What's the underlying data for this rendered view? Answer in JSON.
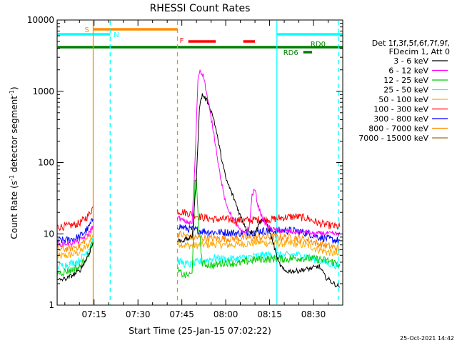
{
  "chart_data": {
    "type": "line",
    "title": "RHESSI Count Rates",
    "xlabel": "Start Time (25-Jan-15 07:02:22)",
    "ylabel_main": "Count Rate (s",
    "ylabel_sup1": "-1",
    "ylabel_mid": " detector segment",
    "ylabel_sup2": "-1",
    "ylabel_end": ")",
    "x_start_min": 422.37,
    "x_end_min": 520.0,
    "ylim": [
      1,
      10000
    ],
    "y_scale": "log",
    "x_ticks": [
      {
        "min": 435,
        "label": "07:15"
      },
      {
        "min": 450,
        "label": "07:30"
      },
      {
        "min": 465,
        "label": "07:45"
      },
      {
        "min": 480,
        "label": "08:00"
      },
      {
        "min": 495,
        "label": "08:15"
      },
      {
        "min": 510,
        "label": "08:30"
      }
    ],
    "y_ticks": [
      {
        "value": 1,
        "label": "1"
      },
      {
        "value": 10,
        "label": "10"
      },
      {
        "value": 100,
        "label": "100"
      },
      {
        "value": 1000,
        "label": "1000"
      },
      {
        "value": 10000,
        "label": "10000"
      }
    ],
    "legend_header": [
      "Det 1f,3f,5f,6f,7f,9f,",
      "FDecim 1, Att 0"
    ],
    "legend_placement": "right",
    "series": [
      {
        "name": "3 - 6 keV",
        "color": "#000000",
        "segments": [
          [
            [
              422.4,
              2.2
            ],
            [
              426,
              2.4
            ],
            [
              430,
              3
            ],
            [
              433,
              5
            ],
            [
              434.7,
              7.5
            ]
          ],
          [
            [
              463.5,
              8
            ],
            [
              466,
              8.2
            ],
            [
              468.5,
              9
            ],
            [
              470,
              60
            ],
            [
              471,
              600
            ],
            [
              472,
              900
            ],
            [
              474,
              700
            ],
            [
              476,
              400
            ],
            [
              478,
              150
            ],
            [
              480,
              60
            ],
            [
              483,
              30
            ],
            [
              485,
              18
            ],
            [
              487,
              12
            ],
            [
              490,
              10
            ],
            [
              492,
              16
            ],
            [
              494,
              14
            ],
            [
              496,
              8
            ],
            [
              498,
              4
            ],
            [
              500,
              3
            ],
            [
              504,
              3
            ],
            [
              508,
              3.2
            ],
            [
              512,
              3.5
            ],
            [
              514,
              2.5
            ],
            [
              517,
              2
            ],
            [
              519,
              1.8
            ]
          ]
        ]
      },
      {
        "name": "6 - 12 keV",
        "color": "#ff00ff",
        "segments": [
          [
            [
              422.4,
              7
            ],
            [
              426,
              7.3
            ],
            [
              430,
              8
            ],
            [
              433,
              10
            ],
            [
              434.7,
              13
            ]
          ],
          [
            [
              463.5,
              17
            ],
            [
              466,
              15
            ],
            [
              468.5,
              14
            ],
            [
              469.5,
              100
            ],
            [
              470.5,
              1500
            ],
            [
              471.2,
              2000
            ],
            [
              472.5,
              1600
            ],
            [
              474,
              700
            ],
            [
              476,
              250
            ],
            [
              478,
              70
            ],
            [
              480,
              26
            ],
            [
              483,
              15
            ],
            [
              485,
              11
            ],
            [
              486,
              10
            ],
            [
              488,
              12
            ],
            [
              489,
              35
            ],
            [
              490,
              42
            ],
            [
              491,
              25
            ],
            [
              493,
              15
            ],
            [
              495,
              12
            ],
            [
              498,
              11
            ],
            [
              501,
              11
            ],
            [
              504,
              10.5
            ],
            [
              506,
              11
            ],
            [
              510,
              10
            ],
            [
              513,
              10.2
            ],
            [
              516,
              10
            ],
            [
              519,
              10
            ]
          ]
        ]
      },
      {
        "name": "12 - 25 keV",
        "color": "#00cc00",
        "segments": [
          [
            [
              422.4,
              2.8
            ],
            [
              426,
              3
            ],
            [
              430,
              3.4
            ],
            [
              433,
              5
            ],
            [
              434.7,
              8
            ]
          ],
          [
            [
              463.5,
              3
            ],
            [
              466,
              2.6
            ],
            [
              468.5,
              2.7
            ],
            [
              469.5,
              50
            ],
            [
              470,
              55
            ],
            [
              470.7,
              14
            ],
            [
              472,
              3.8
            ],
            [
              476,
              3.6
            ],
            [
              480,
              4
            ],
            [
              484,
              3.8
            ],
            [
              488,
              4.2
            ],
            [
              491,
              4.4
            ],
            [
              494,
              4.4
            ],
            [
              498,
              4.5
            ],
            [
              501,
              4.4
            ],
            [
              504,
              4.6
            ],
            [
              508,
              4.5
            ],
            [
              512,
              4.4
            ],
            [
              516,
              4.1
            ],
            [
              519,
              3.7
            ]
          ]
        ]
      },
      {
        "name": "25 - 50 keV",
        "color": "#00ffff",
        "segments": [
          [
            [
              422.4,
              3.5
            ],
            [
              426,
              3.7
            ],
            [
              430,
              4.2
            ],
            [
              433,
              6
            ],
            [
              434.7,
              9
            ]
          ],
          [
            [
              463.5,
              4.2
            ],
            [
              466,
              3.8
            ],
            [
              468.5,
              3.7
            ],
            [
              470,
              4
            ],
            [
              472,
              4.1
            ],
            [
              476,
              4.6
            ],
            [
              480,
              4.4
            ],
            [
              484,
              4.5
            ],
            [
              488,
              4.7
            ],
            [
              492,
              5
            ],
            [
              496,
              5.1
            ],
            [
              500,
              5
            ],
            [
              504,
              5.1
            ],
            [
              508,
              4.8
            ],
            [
              512,
              4.2
            ],
            [
              516,
              3.8
            ],
            [
              519,
              3.5
            ]
          ]
        ]
      },
      {
        "name": "50 - 100 keV",
        "color": "#ffaa00",
        "segments": [
          [
            [
              422.4,
              4.8
            ],
            [
              426,
              5
            ],
            [
              430,
              5.5
            ],
            [
              433,
              7
            ],
            [
              434.7,
              10
            ]
          ],
          [
            [
              463.5,
              7.5
            ],
            [
              466,
              7
            ],
            [
              468.5,
              6.8
            ],
            [
              472,
              7
            ],
            [
              476,
              7.2
            ],
            [
              480,
              7
            ],
            [
              484,
              7.1
            ],
            [
              488,
              7.4
            ],
            [
              492,
              7.6
            ],
            [
              496,
              7.4
            ],
            [
              500,
              7.3
            ],
            [
              504,
              7.2
            ],
            [
              508,
              6.9
            ],
            [
              512,
              6
            ],
            [
              516,
              5.4
            ],
            [
              519,
              5
            ]
          ]
        ]
      },
      {
        "name": "100 - 300 keV",
        "color": "#ff0000",
        "segments": [
          [
            [
              422.4,
              12.5
            ],
            [
              426,
              12.8
            ],
            [
              430,
              14
            ],
            [
              433,
              18
            ],
            [
              434.7,
              24
            ]
          ],
          [
            [
              463.5,
              21
            ],
            [
              466,
              20
            ],
            [
              468.5,
              19
            ],
            [
              472,
              17
            ],
            [
              476,
              16
            ],
            [
              480,
              16
            ],
            [
              484,
              15.5
            ],
            [
              488,
              15.5
            ],
            [
              492,
              16
            ],
            [
              496,
              16
            ],
            [
              500,
              17
            ],
            [
              504,
              17.5
            ],
            [
              508,
              16.5
            ],
            [
              512,
              14
            ],
            [
              516,
              13
            ],
            [
              519,
              12.5
            ]
          ]
        ]
      },
      {
        "name": "300 - 800 keV",
        "color": "#0000ff",
        "segments": [
          [
            [
              422.4,
              8
            ],
            [
              426,
              8.2
            ],
            [
              430,
              9
            ],
            [
              433,
              12
            ],
            [
              434.7,
              16
            ]
          ],
          [
            [
              463.5,
              13
            ],
            [
              466,
              12
            ],
            [
              468.5,
              11.5
            ],
            [
              472,
              11
            ],
            [
              476,
              10.5
            ],
            [
              480,
              10.5
            ],
            [
              484,
              10.2
            ],
            [
              488,
              10.5
            ],
            [
              492,
              11
            ],
            [
              496,
              11
            ],
            [
              500,
              11.2
            ],
            [
              504,
              11
            ],
            [
              508,
              10.2
            ],
            [
              512,
              9
            ],
            [
              516,
              8.3
            ],
            [
              519,
              8
            ]
          ]
        ]
      },
      {
        "name": "800 - 7000 keV",
        "color": "#ff8c00",
        "segments": [
          [
            [
              422.4,
              6
            ],
            [
              426,
              6.2
            ],
            [
              430,
              6.8
            ],
            [
              433,
              9
            ],
            [
              434.7,
              12
            ]
          ],
          [
            [
              463.5,
              10
            ],
            [
              466,
              9.5
            ],
            [
              468.5,
              9
            ],
            [
              472,
              8.8
            ],
            [
              476,
              8.6
            ],
            [
              480,
              8.6
            ],
            [
              484,
              8.6
            ],
            [
              488,
              8.8
            ],
            [
              492,
              9
            ],
            [
              496,
              9
            ],
            [
              500,
              9
            ],
            [
              504,
              8.8
            ],
            [
              508,
              8.2
            ],
            [
              512,
              7.2
            ],
            [
              516,
              6.6
            ],
            [
              519,
              6.2
            ]
          ]
        ]
      },
      {
        "name": "7000 - 15000 keV",
        "color": "#a07020",
        "segments": []
      }
    ],
    "attenuator_bars": [
      {
        "label": "S",
        "color": "#ff8c00",
        "x0": 434.7,
        "x1": 463.5
      },
      {
        "label": "N",
        "color": "#00ffff",
        "x0": 422.4,
        "x1": 440.5
      },
      {
        "label": "N",
        "color": "#00ffff",
        "x0": 497.5,
        "x1": 520.0,
        "show_label": false
      },
      {
        "label": "F",
        "color": "#ff0000",
        "x0": 467.2,
        "x1": 476.6
      },
      {
        "label": "F",
        "color": "#ff0000",
        "x0": 486.0,
        "x1": 490.0,
        "show_label": false
      },
      {
        "label": "RD0",
        "color": "#008000",
        "x0": 422.4,
        "x1": 520.0
      },
      {
        "label": "RD6",
        "color": "#008000",
        "x0": 506.5,
        "x1": 509.5
      }
    ],
    "vertical_lines": [
      {
        "x": 422.4,
        "color": "#00ffff",
        "style": "solid"
      },
      {
        "x": 434.7,
        "color": "#ff8c00",
        "style": "solid"
      },
      {
        "x": 440.5,
        "color": "#00ffff",
        "style": "dashed"
      },
      {
        "x": 463.5,
        "color": "#ff8c00",
        "style": "dashed"
      },
      {
        "x": 497.5,
        "color": "#00ffff",
        "style": "solid"
      },
      {
        "x": 518.5,
        "color": "#00ffff",
        "style": "dashed"
      }
    ],
    "footer_timestamp": "25-Oct-2021 14:42"
  }
}
